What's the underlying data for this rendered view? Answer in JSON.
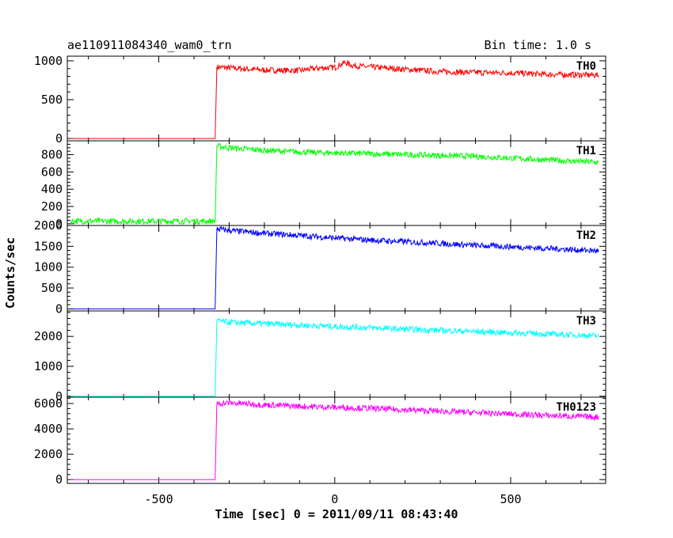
{
  "header": {
    "title": "ae110911084340_wam0_trn",
    "bin_time": "Bin time: 1.0 s"
  },
  "chart_data": {
    "type": "line",
    "xlabel": "Time [sec] 0 = 2011/09/11 08:43:40",
    "ylabel": "Counts/sec",
    "xlim": [
      -760,
      770
    ],
    "x_ticks": [
      -500,
      0,
      500
    ],
    "grid": false,
    "series": [
      {
        "name": "TH0",
        "color": "#ff0000",
        "ylim": [
          -30,
          1060
        ],
        "y_ticks": [
          0,
          500,
          1000
        ],
        "points": [
          [
            -750,
            0
          ],
          [
            -340,
            0
          ],
          [
            -335,
            920
          ],
          [
            -300,
            910
          ],
          [
            -200,
            880
          ],
          [
            -100,
            875
          ],
          [
            -50,
            905
          ],
          [
            0,
            915
          ],
          [
            30,
            980
          ],
          [
            50,
            940
          ],
          [
            100,
            920
          ],
          [
            200,
            890
          ],
          [
            300,
            860
          ],
          [
            400,
            850
          ],
          [
            500,
            845
          ],
          [
            600,
            825
          ],
          [
            700,
            820
          ],
          [
            750,
            815
          ]
        ]
      },
      {
        "name": "TH1",
        "color": "#00ff00",
        "ylim": [
          -20,
          960
        ],
        "y_ticks": [
          0,
          200,
          400,
          600,
          800
        ],
        "points": [
          [
            -750,
            30
          ],
          [
            -340,
            30
          ],
          [
            -335,
            900
          ],
          [
            -300,
            880
          ],
          [
            -200,
            850
          ],
          [
            -100,
            830
          ],
          [
            0,
            820
          ],
          [
            100,
            810
          ],
          [
            200,
            800
          ],
          [
            300,
            790
          ],
          [
            400,
            780
          ],
          [
            500,
            760
          ],
          [
            600,
            740
          ],
          [
            700,
            720
          ],
          [
            750,
            710
          ]
        ]
      },
      {
        "name": "TH2",
        "color": "#0000ff",
        "ylim": [
          -50,
          2000
        ],
        "y_ticks": [
          0,
          500,
          1000,
          1500,
          2000
        ],
        "points": [
          [
            -750,
            0
          ],
          [
            -340,
            0
          ],
          [
            -335,
            1920
          ],
          [
            -300,
            1880
          ],
          [
            -200,
            1810
          ],
          [
            -100,
            1760
          ],
          [
            0,
            1700
          ],
          [
            100,
            1650
          ],
          [
            200,
            1610
          ],
          [
            300,
            1570
          ],
          [
            400,
            1520
          ],
          [
            500,
            1490
          ],
          [
            600,
            1450
          ],
          [
            700,
            1410
          ],
          [
            750,
            1390
          ]
        ]
      },
      {
        "name": "TH3",
        "color": "#00ffff",
        "ylim": [
          -30,
          2850
        ],
        "y_ticks": [
          0,
          1000,
          2000
        ],
        "points": [
          [
            -750,
            0
          ],
          [
            -340,
            0
          ],
          [
            -335,
            2520
          ],
          [
            -300,
            2470
          ],
          [
            -200,
            2420
          ],
          [
            -100,
            2380
          ],
          [
            0,
            2330
          ],
          [
            100,
            2290
          ],
          [
            200,
            2240
          ],
          [
            300,
            2200
          ],
          [
            400,
            2160
          ],
          [
            500,
            2120
          ],
          [
            600,
            2080
          ],
          [
            700,
            2040
          ],
          [
            750,
            2020
          ]
        ]
      },
      {
        "name": "TH0123",
        "color": "#ff00ff",
        "ylim": [
          -300,
          6500
        ],
        "y_ticks": [
          0,
          2000,
          4000,
          6000
        ],
        "points": [
          [
            -750,
            0
          ],
          [
            -340,
            0
          ],
          [
            -335,
            6000
          ],
          [
            -300,
            6050
          ],
          [
            -200,
            5900
          ],
          [
            -100,
            5780
          ],
          [
            0,
            5700
          ],
          [
            100,
            5620
          ],
          [
            200,
            5500
          ],
          [
            300,
            5390
          ],
          [
            400,
            5280
          ],
          [
            500,
            5170
          ],
          [
            600,
            5060
          ],
          [
            700,
            4970
          ],
          [
            750,
            4930
          ]
        ]
      }
    ]
  }
}
